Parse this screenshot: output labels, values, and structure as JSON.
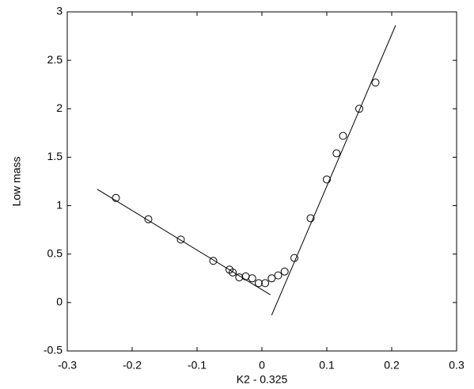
{
  "chart_data": {
    "type": "scatter",
    "xlabel": "K2  -  0.325",
    "ylabel": "Low mass",
    "x": [
      -0.225,
      -0.175,
      -0.125,
      -0.075,
      -0.05,
      -0.045,
      -0.035,
      -0.025,
      -0.015,
      -0.005,
      0.005,
      0.015,
      0.025,
      0.035,
      0.05,
      0.075,
      0.1,
      0.115,
      0.125,
      0.15,
      0.175
    ],
    "values": [
      1.08,
      0.86,
      0.65,
      0.43,
      0.34,
      0.31,
      0.26,
      0.27,
      0.25,
      0.2,
      0.2,
      0.25,
      0.28,
      0.32,
      0.46,
      0.87,
      1.27,
      1.54,
      1.72,
      2.0,
      2.27
    ],
    "color": "#000000",
    "fits": [
      {
        "x": [
          -0.254,
          0.013
        ],
        "values": [
          1.17,
          0.08
        ]
      },
      {
        "x": [
          0.015,
          0.206
        ],
        "values": [
          -0.13,
          2.86
        ]
      }
    ],
    "xlim": [
      -0.3,
      0.3
    ],
    "xticks": [
      -0.3,
      -0.2,
      -0.1,
      0,
      0.1,
      0.2,
      0.3
    ],
    "ylim": [
      -0.5,
      3
    ],
    "yticks": [
      -0.5,
      0,
      0.5,
      1,
      1.5,
      2,
      2.5,
      3
    ]
  }
}
